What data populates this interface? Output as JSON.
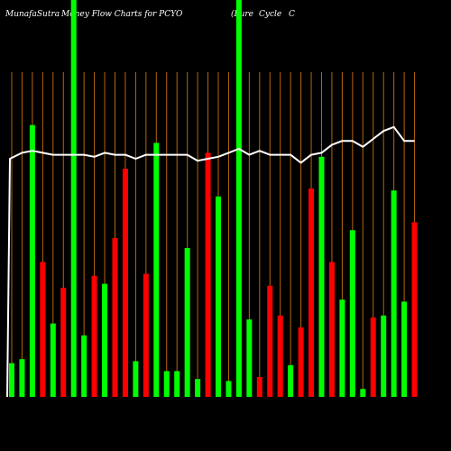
{
  "title": {
    "site": "MunafaSutra",
    "heading": "Money Flow Charts for PCYO",
    "company": "(Pure",
    "company2": "Cycle",
    "company3": "C"
  },
  "colors": {
    "background": "#000000",
    "grid": "#b8660b",
    "up": "#00ff00",
    "down": "#ff0000",
    "price": "#ffffff",
    "label": "#ffffff"
  },
  "chart_data": {
    "type": "bar",
    "title": "Money Flow Charts for PCYO",
    "xlabel": "",
    "ylabel": "",
    "ylim": [
      0,
      100
    ],
    "grid": true,
    "categories": [
      "",
      "",
      "",
      "",
      "",
      "",
      "",
      "",
      "",
      "",
      "",
      "",
      "",
      "",
      "",
      "",
      "",
      "",
      "",
      "",
      "",
      "",
      "",
      "",
      "",
      "",
      "",
      "",
      "",
      "",
      "",
      "",
      "",
      "",
      "",
      "",
      "",
      "",
      "",
      ""
    ],
    "x_tick_labels": [
      "",
      "",
      "",
      "",
      "",
      "",
      "",
      "",
      "",
      "",
      "",
      "",
      "",
      "",
      "",
      "",
      "",
      "",
      "",
      "",
      "",
      "",
      "",
      "",
      "",
      "",
      "",
      "",
      "",
      "",
      "",
      "",
      "",
      "",
      "",
      "",
      "",
      "",
      "",
      ""
    ],
    "series": [
      {
        "type": "bar",
        "values": [
          8.5,
          9.5,
          68.5,
          34,
          18.5,
          27.5,
          100,
          15.5,
          30.5,
          28.5,
          40,
          57.5,
          9,
          31,
          64,
          6.5,
          6.5,
          37.5,
          4.5,
          61.5,
          50.5,
          4,
          100,
          19.5,
          5,
          28,
          20.5,
          8,
          17.5,
          52.5,
          60.5,
          34,
          24.5,
          42,
          2,
          20,
          20.5,
          52,
          24,
          44
        ],
        "direction": [
          "up",
          "up",
          "up",
          "down",
          "up",
          "down",
          "up",
          "up",
          "down",
          "up",
          "down",
          "down",
          "up",
          "down",
          "up",
          "up",
          "up",
          "up",
          "up",
          "down",
          "up",
          "up",
          "up",
          "up",
          "down",
          "down",
          "down",
          "up",
          "down",
          "down",
          "up",
          "down",
          "up",
          "up",
          "up",
          "down",
          "up",
          "up",
          "up",
          "down"
        ]
      },
      {
        "type": "line",
        "values": [
          60,
          61.5,
          62,
          61.5,
          61,
          61,
          61,
          61,
          60.5,
          61.5,
          61,
          61,
          60,
          61,
          61,
          61,
          61,
          61,
          59.5,
          60,
          60.5,
          61.5,
          62.5,
          61,
          62,
          61,
          61,
          61,
          59,
          61,
          61.5,
          63.5,
          64.5,
          64.5,
          63,
          65,
          67,
          68,
          64.5,
          64.5
        ]
      }
    ]
  }
}
